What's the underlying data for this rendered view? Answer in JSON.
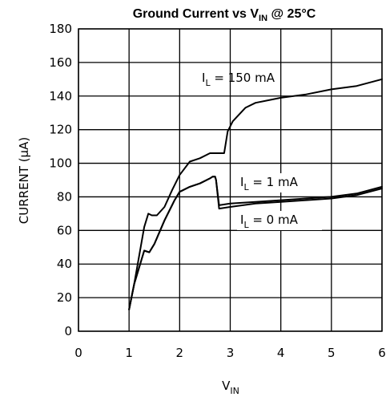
{
  "chart_data": {
    "type": "line",
    "title": {
      "main": "Ground Current vs V",
      "sub": "IN",
      "suffix": " @ 25°C"
    },
    "xlabel": {
      "main": "V",
      "sub": "IN"
    },
    "ylabel": "CURRENT (µA)",
    "xlim": [
      0,
      6
    ],
    "ylim": [
      0,
      180
    ],
    "xticks": [
      0,
      1,
      2,
      3,
      4,
      5,
      6
    ],
    "yticks": [
      0,
      20,
      40,
      60,
      80,
      100,
      120,
      140,
      160,
      180
    ],
    "grid": true,
    "series": [
      {
        "name": "I_L = 150 mA",
        "label": {
          "main": "I",
          "sub": "L",
          "suffix": " = 150 mA"
        },
        "x": [
          1.0,
          1.1,
          1.2,
          1.3,
          1.38,
          1.45,
          1.55,
          1.7,
          1.85,
          2.0,
          2.2,
          2.4,
          2.6,
          2.75,
          2.88,
          2.95,
          3.05,
          3.3,
          3.5,
          4.0,
          4.5,
          5.0,
          5.5,
          6.0
        ],
        "y": [
          13,
          28,
          45,
          62,
          70,
          69,
          69,
          74,
          84,
          93,
          101,
          103,
          106,
          106,
          106,
          119,
          125,
          133,
          136,
          139,
          141,
          144,
          146,
          150
        ]
      },
      {
        "name": "I_L = 1 mA",
        "label": {
          "main": "I",
          "sub": "L",
          "suffix": " = 1 mA"
        },
        "x": [
          1.0,
          1.1,
          1.2,
          1.3,
          1.4,
          1.5,
          1.7,
          1.9,
          2.0,
          2.2,
          2.4,
          2.6,
          2.65,
          2.7,
          2.72,
          2.78,
          3.0,
          3.5,
          4.0,
          4.5,
          5.0,
          5.5,
          6.0
        ],
        "y": [
          13,
          28,
          38,
          48,
          47,
          52,
          66,
          78,
          83,
          86,
          88,
          91,
          92,
          92,
          90,
          75,
          76,
          77,
          78,
          79,
          80,
          82,
          86
        ]
      },
      {
        "name": "I_L = 0 mA",
        "label": {
          "main": "I",
          "sub": "L",
          "suffix": " = 0 mA"
        },
        "x": [
          1.0,
          1.1,
          1.2,
          1.3,
          1.4,
          1.5,
          1.7,
          1.9,
          2.0,
          2.2,
          2.4,
          2.6,
          2.65,
          2.7,
          2.72,
          2.78,
          3.0,
          3.5,
          4.0,
          4.5,
          5.0,
          5.5,
          6.0
        ],
        "y": [
          13,
          28,
          38,
          48,
          47,
          52,
          66,
          78,
          83,
          86,
          88,
          91,
          92,
          92,
          90,
          73,
          74,
          76,
          77,
          78,
          79,
          81,
          85
        ]
      }
    ]
  }
}
